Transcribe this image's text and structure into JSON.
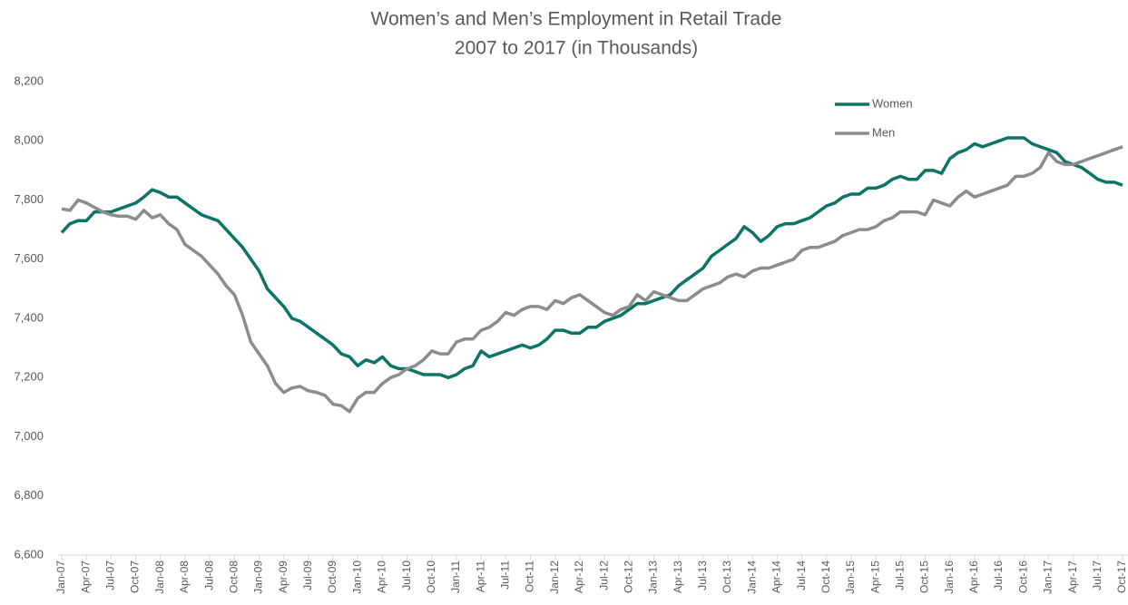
{
  "chart_data": {
    "type": "line",
    "title": "Women’s and Men’s Employment in Retail Trade",
    "subtitle": "2007 to 2017 (in Thousands)",
    "categories": [
      "Jan-07",
      null,
      null,
      "Apr-07",
      null,
      null,
      "Jul-07",
      null,
      null,
      "Oct-07",
      null,
      null,
      "Jan-08",
      null,
      null,
      "Apr-08",
      null,
      null,
      "Jul-08",
      null,
      null,
      "Oct-08",
      null,
      null,
      "Jan-09",
      null,
      null,
      "Apr-09",
      null,
      null,
      "Jul-09",
      null,
      null,
      "Oct-09",
      null,
      null,
      "Jan-10",
      null,
      null,
      "Apr-10",
      null,
      null,
      "Jul-10",
      null,
      null,
      "Oct-10",
      null,
      null,
      "Jan-11",
      null,
      null,
      "Apr-11",
      null,
      null,
      "Jul-11",
      null,
      null,
      "Oct-11",
      null,
      null,
      "Jan-12",
      null,
      null,
      "Apr-12",
      null,
      null,
      "Jul-12",
      null,
      null,
      "Oct-12",
      null,
      null,
      "Jan-13",
      null,
      null,
      "Apr-13",
      null,
      null,
      "Jul-13",
      null,
      null,
      "Oct-13",
      null,
      null,
      "Jan-14",
      null,
      null,
      "Apr-14",
      null,
      null,
      "Jul-14",
      null,
      null,
      "Oct-14",
      null,
      null,
      "Jan-15",
      null,
      null,
      "Apr-15",
      null,
      null,
      "Jul-15",
      null,
      null,
      "Oct-15",
      null,
      null,
      "Jan-16",
      null,
      null,
      "Apr-16",
      null,
      null,
      "Jul-16",
      null,
      null,
      "Oct-16",
      null,
      null,
      "Jan-17",
      null,
      null,
      "Apr-17",
      null,
      null,
      "Jul-17",
      null,
      null,
      "Oct-17"
    ],
    "series": [
      {
        "name": "Women",
        "color": "#0b7466",
        "values": [
          7690,
          7720,
          7730,
          7730,
          7760,
          7760,
          7760,
          7770,
          7780,
          7790,
          7810,
          7835,
          7825,
          7810,
          7810,
          7790,
          7770,
          7750,
          7740,
          7730,
          7700,
          7670,
          7640,
          7600,
          7560,
          7500,
          7470,
          7440,
          7400,
          7390,
          7370,
          7350,
          7330,
          7310,
          7280,
          7270,
          7240,
          7260,
          7250,
          7270,
          7240,
          7230,
          7230,
          7220,
          7210,
          7210,
          7210,
          7200,
          7210,
          7230,
          7240,
          7290,
          7270,
          7280,
          7290,
          7300,
          7310,
          7300,
          7310,
          7330,
          7360,
          7360,
          7350,
          7350,
          7370,
          7370,
          7390,
          7400,
          7410,
          7430,
          7450,
          7450,
          7460,
          7470,
          7480,
          7510,
          7530,
          7550,
          7570,
          7610,
          7630,
          7650,
          7670,
          7710,
          7690,
          7660,
          7680,
          7710,
          7720,
          7720,
          7730,
          7740,
          7760,
          7780,
          7790,
          7810,
          7820,
          7820,
          7840,
          7840,
          7850,
          7870,
          7880,
          7870,
          7870,
          7900,
          7900,
          7890,
          7940,
          7960,
          7970,
          7990,
          7980,
          7990,
          8000,
          8010,
          8010,
          8010,
          7990,
          7980,
          7970,
          7960,
          7930,
          7920,
          7910,
          7890,
          7870,
          7860,
          7860,
          7850
        ]
      },
      {
        "name": "Men",
        "color": "#8c8c8c",
        "values": [
          7770,
          7765,
          7800,
          7790,
          7775,
          7760,
          7750,
          7745,
          7745,
          7735,
          7765,
          7740,
          7750,
          7720,
          7700,
          7650,
          7630,
          7610,
          7580,
          7550,
          7510,
          7480,
          7410,
          7320,
          7280,
          7240,
          7180,
          7150,
          7165,
          7170,
          7155,
          7150,
          7140,
          7110,
          7105,
          7085,
          7130,
          7150,
          7150,
          7180,
          7200,
          7210,
          7230,
          7240,
          7260,
          7290,
          7280,
          7280,
          7320,
          7330,
          7330,
          7360,
          7370,
          7390,
          7420,
          7410,
          7430,
          7440,
          7440,
          7430,
          7460,
          7450,
          7470,
          7480,
          7460,
          7440,
          7420,
          7410,
          7430,
          7440,
          7480,
          7460,
          7490,
          7480,
          7470,
          7460,
          7460,
          7480,
          7500,
          7510,
          7520,
          7540,
          7550,
          7540,
          7560,
          7570,
          7570,
          7580,
          7590,
          7600,
          7630,
          7640,
          7640,
          7650,
          7660,
          7680,
          7690,
          7700,
          7700,
          7710,
          7730,
          7740,
          7760,
          7760,
          7760,
          7750,
          7800,
          7790,
          7780,
          7810,
          7830,
          7810,
          7820,
          7830,
          7840,
          7850,
          7880,
          7880,
          7890,
          7910,
          7960,
          7930,
          7920,
          7920,
          7930,
          7940,
          7950,
          7960,
          7970,
          7980
        ]
      }
    ],
    "ylim": [
      6600,
      8200
    ],
    "yticks": [
      {
        "value": 6600,
        "label": "6,600"
      },
      {
        "value": 6800,
        "label": "6,800"
      },
      {
        "value": 7000,
        "label": "7,000"
      },
      {
        "value": 7200,
        "label": "7,200"
      },
      {
        "value": 7400,
        "label": "7,400"
      },
      {
        "value": 7600,
        "label": "7,600"
      },
      {
        "value": 7800,
        "label": "7,800"
      },
      {
        "value": 8000,
        "label": "8,000"
      },
      {
        "value": 8200,
        "label": "8,200"
      }
    ],
    "grid": false,
    "legend": "upper-right"
  }
}
